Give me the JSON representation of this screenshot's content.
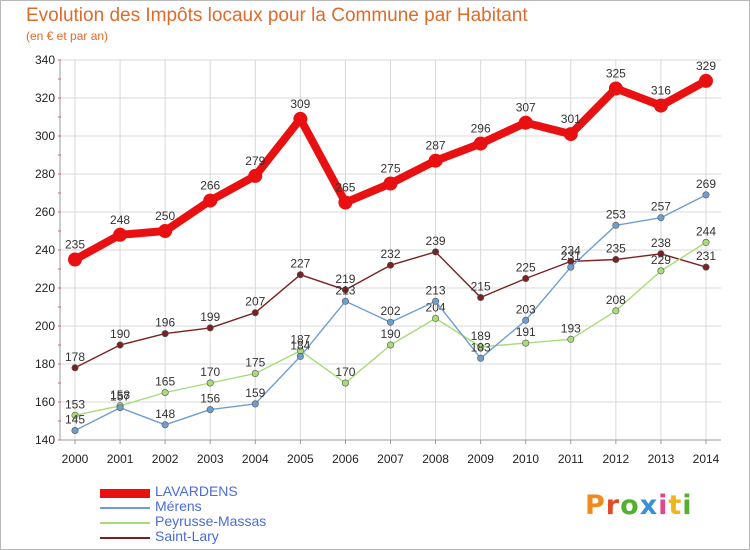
{
  "header": {
    "title": "Evolution des Impôts locaux pour la Commune par Habitant",
    "subtitle": "(en € et par an)"
  },
  "brand": {
    "text": "Proxiti",
    "colors": [
      "#f08a1c",
      "#e04a2a",
      "#56b030",
      "#3a8fd6",
      "#e04a8a",
      "#f0b41c",
      "#56b030"
    ]
  },
  "colors": {
    "title": "#e06a2a",
    "legend_text": "#4b6cd6",
    "grid": "#d8d8d8",
    "tick_marks": "#e05050"
  },
  "chart_data": {
    "type": "line",
    "title": "Evolution des Impôts locaux pour la Commune par Habitant",
    "x": [
      "2000",
      "2001",
      "2002",
      "2003",
      "2004",
      "2005",
      "2006",
      "2007",
      "2008",
      "2009",
      "2010",
      "2011",
      "2012",
      "2013",
      "2014"
    ],
    "ylim": [
      140,
      340
    ],
    "yticks": [
      140,
      160,
      180,
      200,
      220,
      240,
      260,
      280,
      300,
      320,
      340
    ],
    "grid": true,
    "legend": "bottom-left",
    "series": [
      {
        "name": "LAVARDENS",
        "color": "#e81010",
        "values": [
          235,
          248,
          250,
          266,
          279,
          309,
          265,
          275,
          287,
          296,
          307,
          301,
          325,
          316,
          329
        ]
      },
      {
        "name": "Mérens",
        "color": "#6e9ed0",
        "values": [
          145,
          157,
          148,
          156,
          159,
          184,
          213,
          202,
          213,
          183,
          203,
          231,
          253,
          257,
          269
        ]
      },
      {
        "name": "Peyrusse-Massas",
        "color": "#a8dc7a",
        "values": [
          153,
          158,
          165,
          170,
          175,
          187,
          170,
          190,
          204,
          189,
          191,
          193,
          208,
          229,
          244
        ]
      },
      {
        "name": "Saint-Lary",
        "color": "#7a2222",
        "values": [
          178,
          190,
          196,
          199,
          207,
          227,
          219,
          232,
          239,
          215,
          225,
          234,
          235,
          238,
          231
        ]
      }
    ]
  }
}
